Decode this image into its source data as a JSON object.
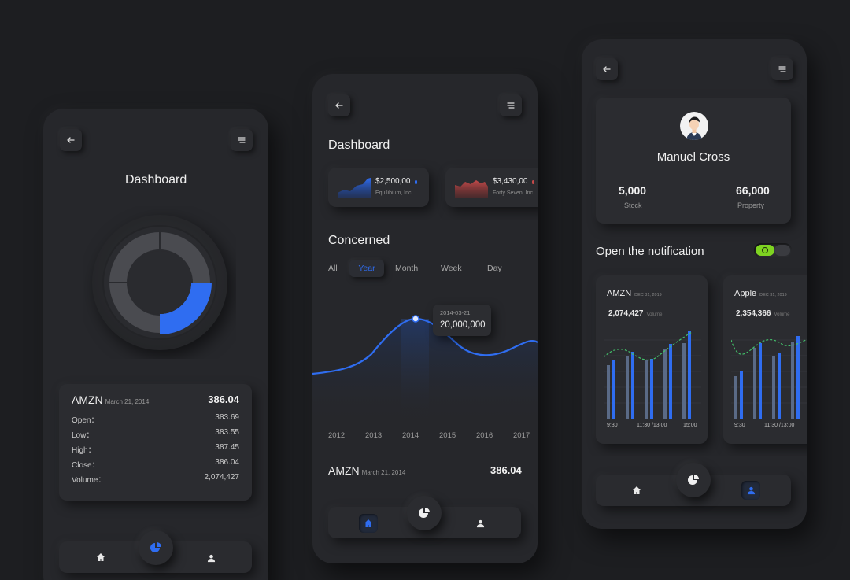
{
  "colors": {
    "accent": "#2f6df1",
    "green": "#7ed321",
    "red": "#c44a4a"
  },
  "screen1": {
    "title": "Dashboard",
    "stock": {
      "symbol": "AMZN",
      "date": "March 21, 2014",
      "price": "386.04",
      "rows": [
        {
          "label": "Open：",
          "value": "383.69"
        },
        {
          "label": "Low：",
          "value": "383.55"
        },
        {
          "label": "High：",
          "value": "387.45"
        },
        {
          "label": "Close：",
          "value": "386.04"
        },
        {
          "label": "Volume：",
          "value": "2,074,427"
        }
      ]
    },
    "donut_highlight_fraction": 0.25
  },
  "screen2": {
    "title": "Dashboard",
    "cards": [
      {
        "price": "$2,500,00",
        "name": "Equilibium, Inc.",
        "color": "#2f6df1"
      },
      {
        "price": "$3,430,00",
        "name": "Forty Seven, Inc.",
        "color": "#c44a4a"
      }
    ],
    "section_title": "Concerned",
    "tabs": [
      "All",
      "Year",
      "Month",
      "Week",
      "Day"
    ],
    "active_tab": "Year",
    "tooltip": {
      "date": "2014-03-21",
      "value": "20,000,000"
    },
    "x_labels": [
      "2012",
      "2013",
      "2014",
      "2015",
      "2016",
      "2017"
    ],
    "stock": {
      "symbol": "AMZN",
      "date": "March 21, 2014",
      "price": "386.04"
    }
  },
  "screen3": {
    "profile": {
      "name": "Manuel Cross",
      "stats": [
        {
          "value": "5,000",
          "label": "Stock"
        },
        {
          "value": "66,000",
          "label": "Property"
        }
      ]
    },
    "notification_label": "Open the notification",
    "toggle_on": true,
    "charts": [
      {
        "symbol": "AMZN",
        "date": "DEC 31, 2019",
        "value": "2,074,427",
        "unit": "Volume",
        "x_labels": [
          "9:30",
          "11:30 /13:00",
          "15:00"
        ]
      },
      {
        "symbol": "Apple",
        "date": "DEC 31, 2019",
        "value": "2,354,366",
        "unit": "Volume",
        "x_labels": [
          "9:30",
          "11:30 /13:00"
        ]
      }
    ]
  }
}
